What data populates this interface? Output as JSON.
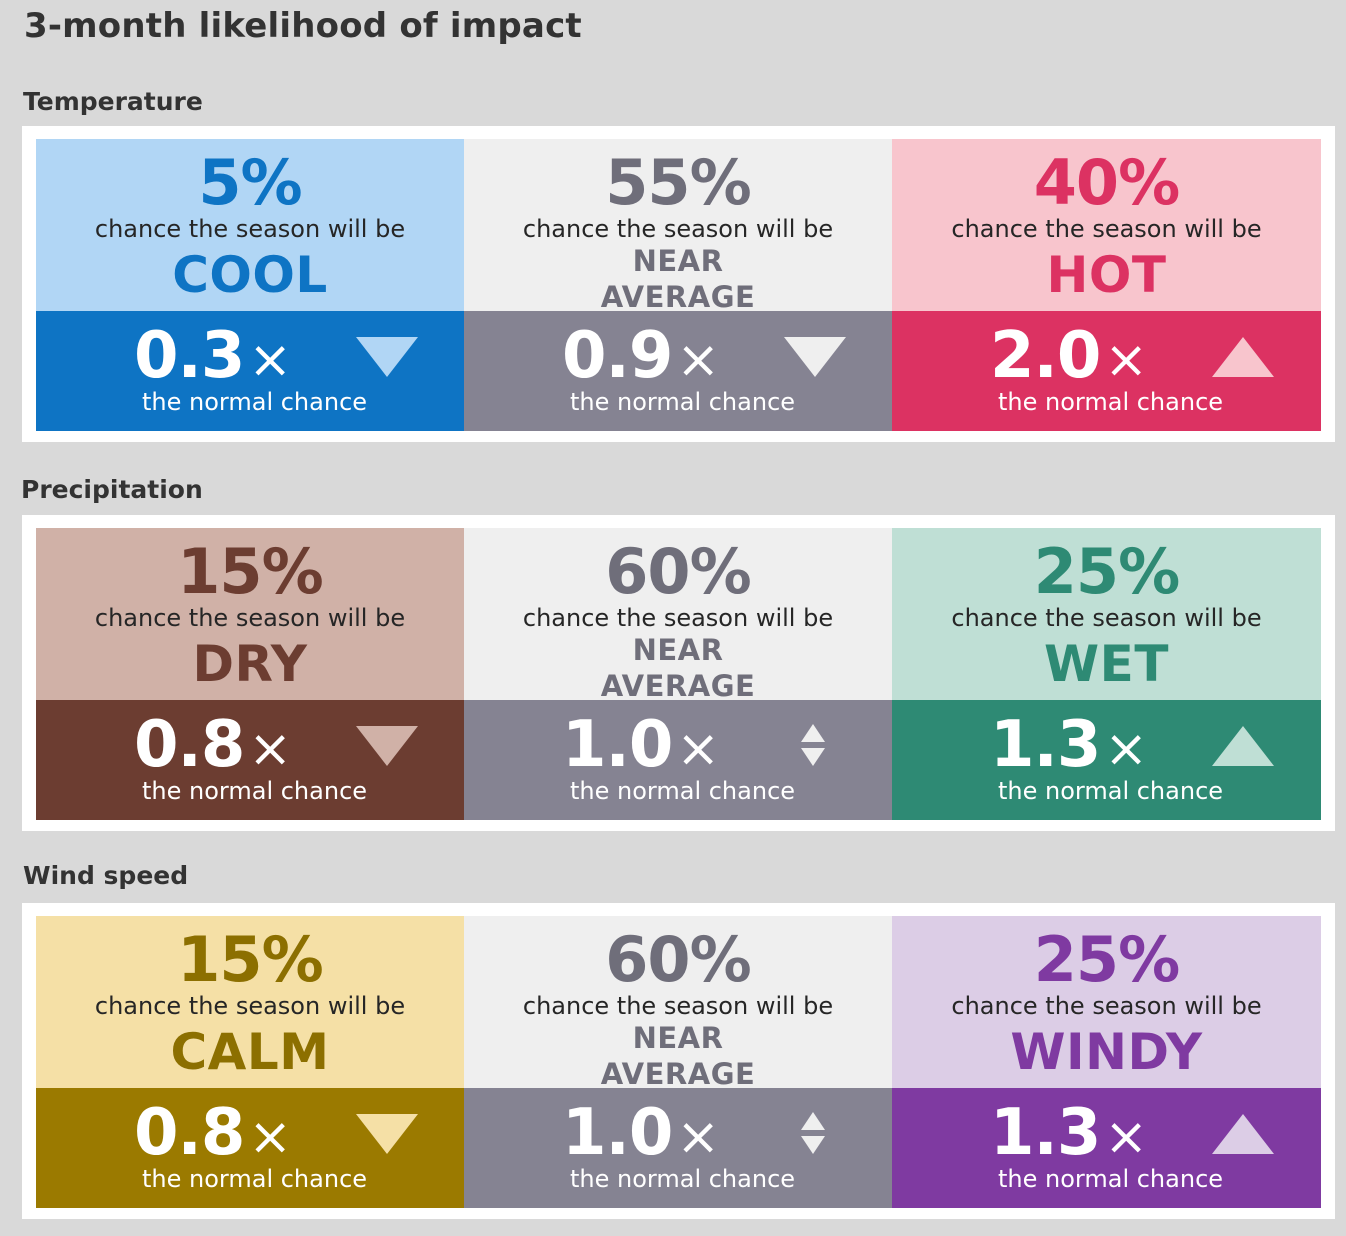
{
  "title": "3-month likelihood of impact",
  "sections": [
    {
      "label": "Temperature",
      "cells": [
        {
          "pct": "5%",
          "chance": "chance the season will be",
          "outcome_lines": [
            "COOL"
          ],
          "mult": "0.3",
          "times": "×",
          "normal": "the normal chance",
          "arrow": "down-triangle-icon",
          "top_bg": "#b1d6f5",
          "bottom_bg": "#0e74c4",
          "pct_color": "#0e74c4",
          "outcome_color": "#0e74c4",
          "arrow_color": "#b1d6f5"
        },
        {
          "pct": "55%",
          "chance": "chance the season will be",
          "outcome_lines": [
            "NEAR",
            "AVERAGE"
          ],
          "mult": "0.9",
          "times": "×",
          "normal": "the normal chance",
          "arrow": "down-triangle-icon",
          "top_bg": "#efefef",
          "bottom_bg": "#858392",
          "pct_color": "#6f6e7a",
          "outcome_color": "#6f6e7a",
          "arrow_color": "#efefef"
        },
        {
          "pct": "40%",
          "chance": "chance the season will be",
          "outcome_lines": [
            "HOT"
          ],
          "mult": "2.0",
          "times": "×",
          "normal": "the normal chance",
          "arrow": "up-triangle-icon",
          "top_bg": "#f8c5cd",
          "bottom_bg": "#dc3262",
          "pct_color": "#dc3262",
          "outcome_color": "#dc3262",
          "arrow_color": "#f8c5cd"
        }
      ]
    },
    {
      "label": "Precipitation",
      "cells": [
        {
          "pct": "15%",
          "chance": "chance the season will be",
          "outcome_lines": [
            "DRY"
          ],
          "mult": "0.8",
          "times": "×",
          "normal": "the normal chance",
          "arrow": "down-triangle-icon",
          "top_bg": "#d0b1a7",
          "bottom_bg": "#6c3d31",
          "pct_color": "#6c3d31",
          "outcome_color": "#6c3d31",
          "arrow_color": "#d0b1a7"
        },
        {
          "pct": "60%",
          "chance": "chance the season will be",
          "outcome_lines": [
            "NEAR",
            "AVERAGE"
          ],
          "mult": "1.0",
          "times": "×",
          "normal": "the normal chance",
          "arrow": "up-down-arrow-icon",
          "top_bg": "#efefef",
          "bottom_bg": "#858392",
          "pct_color": "#6f6e7a",
          "outcome_color": "#6f6e7a",
          "arrow_color": "#efefef"
        },
        {
          "pct": "25%",
          "chance": "chance the season will be",
          "outcome_lines": [
            "WET"
          ],
          "mult": "1.3",
          "times": "×",
          "normal": "the normal chance",
          "arrow": "up-triangle-icon",
          "top_bg": "#bfdfd5",
          "bottom_bg": "#2e8a74",
          "pct_color": "#2e8a74",
          "outcome_color": "#2e8a74",
          "arrow_color": "#bfdfd5"
        }
      ]
    },
    {
      "label": "Wind speed",
      "cells": [
        {
          "pct": "15%",
          "chance": "chance the season will be",
          "outcome_lines": [
            "CALM"
          ],
          "mult": "0.8",
          "times": "×",
          "normal": "the normal chance",
          "arrow": "down-triangle-icon",
          "top_bg": "#f5e0a6",
          "bottom_bg": "#9b7a00",
          "pct_color": "#8c6f00",
          "outcome_color": "#8c6f00",
          "arrow_color": "#f5e0a6"
        },
        {
          "pct": "60%",
          "chance": "chance the season will be",
          "outcome_lines": [
            "NEAR",
            "AVERAGE"
          ],
          "mult": "1.0",
          "times": "×",
          "normal": "the normal chance",
          "arrow": "up-down-arrow-icon",
          "top_bg": "#efefef",
          "bottom_bg": "#858392",
          "pct_color": "#6f6e7a",
          "outcome_color": "#6f6e7a",
          "arrow_color": "#efefef"
        },
        {
          "pct": "25%",
          "chance": "chance the season will be",
          "outcome_lines": [
            "WINDY"
          ],
          "mult": "1.3",
          "times": "×",
          "normal": "the normal chance",
          "arrow": "up-triangle-icon",
          "top_bg": "#dccde6",
          "bottom_bg": "#7f3aa1",
          "pct_color": "#7f3aa1",
          "outcome_color": "#7f3aa1",
          "arrow_color": "#dccde6"
        }
      ]
    }
  ]
}
